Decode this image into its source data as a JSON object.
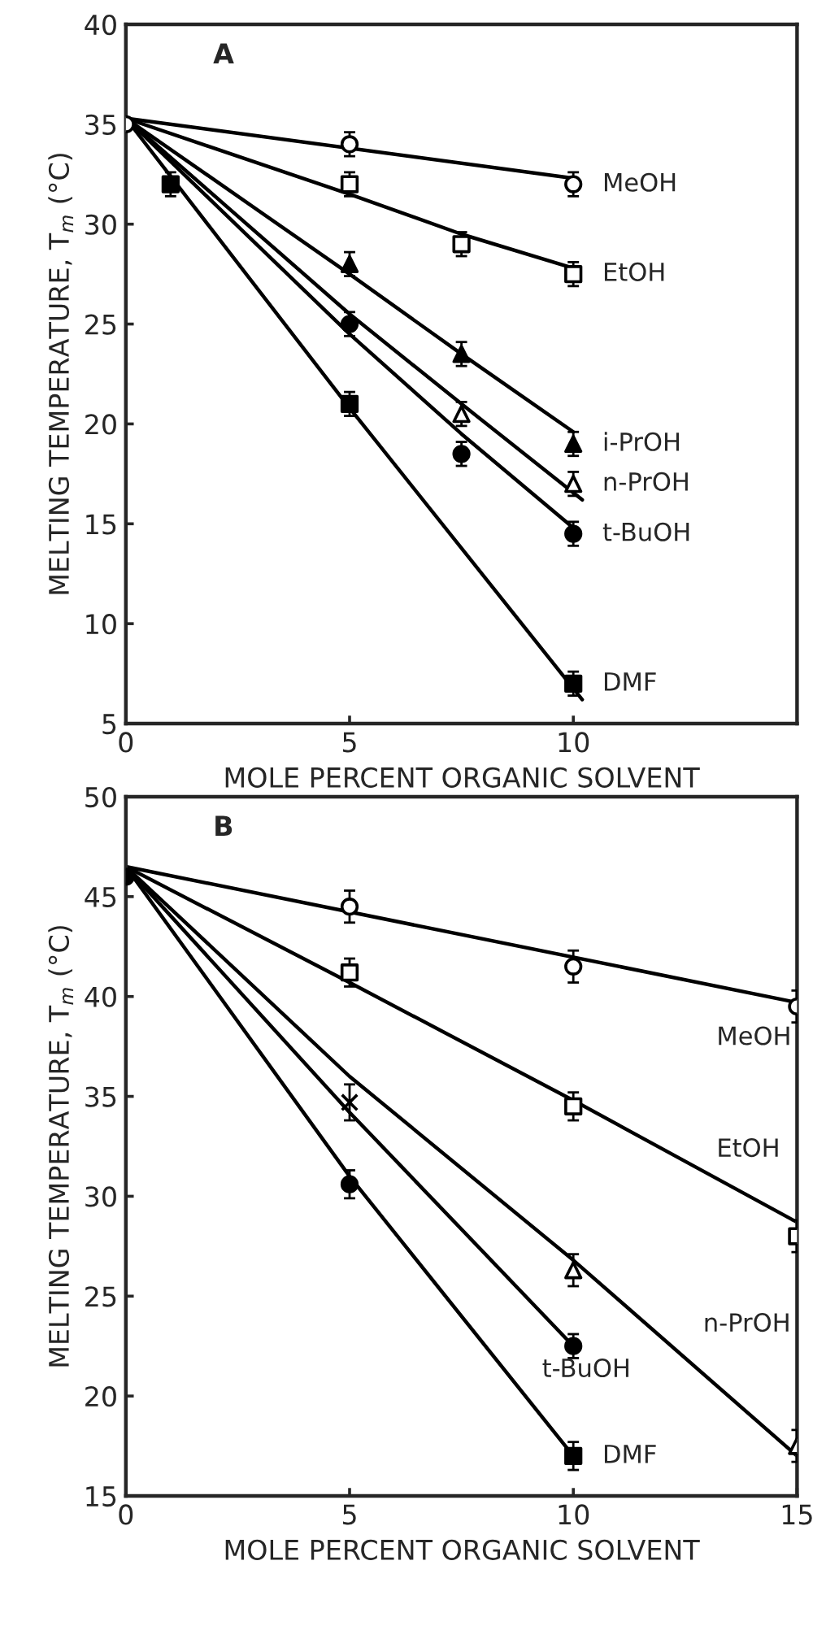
{
  "chart_data": [
    {
      "type": "scatter",
      "xlabel": "MOLE PERCENT ORGANIC SOLVENT",
      "ylabel": "MELTING TEMPERATURE, T$_{m}$ (°C)",
      "xlim": [
        0,
        15
      ],
      "xticks": [
        0,
        5,
        10
      ],
      "ylim": [
        5,
        40
      ],
      "yticks": [
        5,
        10,
        15,
        20,
        25,
        30,
        35,
        40
      ],
      "grid": false,
      "legend": false,
      "annotations": [
        "A",
        "MeOH",
        "EtOH",
        "i-PrOH",
        "n-PrOH",
        "t-BuOH",
        "DMF"
      ],
      "series": [
        {
          "type": "line",
          "color": "#000000",
          "marker": "none",
          "x": [
            0,
            10
          ],
          "values": [
            35.3,
            32.3
          ]
        },
        {
          "type": "line",
          "color": "#000000",
          "marker": "none",
          "x": [
            0,
            5,
            7.5,
            10
          ],
          "values": [
            35.3,
            31.5,
            29.5,
            27.8
          ]
        },
        {
          "type": "line",
          "color": "#000000",
          "marker": "none",
          "x": [
            0,
            5,
            7.5,
            10
          ],
          "values": [
            35.3,
            27.5,
            23.5,
            19.6
          ]
        },
        {
          "type": "line",
          "color": "#000000",
          "marker": "none",
          "x": [
            0,
            5,
            7.5,
            10.2
          ],
          "values": [
            35.3,
            25.5,
            21,
            16.2
          ]
        },
        {
          "type": "line",
          "color": "#000000",
          "marker": "none",
          "x": [
            0,
            5,
            7.5,
            10
          ],
          "values": [
            35.3,
            24.5,
            19.5,
            14.8
          ]
        },
        {
          "type": "line",
          "color": "#000000",
          "marker": "none",
          "x": [
            0,
            5,
            10.2
          ],
          "values": [
            35.3,
            20.8,
            6.2
          ]
        },
        {
          "type": "scatter",
          "color": "#ffffff",
          "marker": "circle",
          "x": [
            0,
            5,
            10
          ],
          "values": [
            35,
            34,
            32
          ],
          "errors": [
            null,
            0.6,
            0.6
          ]
        },
        {
          "type": "scatter",
          "color": "#ffffff",
          "marker": "square",
          "x": [
            5,
            7.5,
            10
          ],
          "values": [
            32,
            29,
            27.5
          ],
          "errors": [
            0.6,
            0.6,
            0.6
          ]
        },
        {
          "type": "scatter",
          "color": "#000000",
          "marker": "triangle",
          "x": [
            5,
            7.5,
            10
          ],
          "values": [
            28,
            23.5,
            19
          ],
          "errors": [
            0.6,
            0.6,
            0.6
          ]
        },
        {
          "type": "scatter",
          "color": "#ffffff",
          "marker": "triangle",
          "x": [
            7.5,
            10
          ],
          "values": [
            20.5,
            17
          ],
          "errors": [
            0.6,
            0.6
          ]
        },
        {
          "type": "scatter",
          "color": "#000000",
          "marker": "circle",
          "x": [
            5,
            7.5,
            10
          ],
          "values": [
            25,
            18.5,
            14.5
          ],
          "errors": [
            0.6,
            0.6,
            0.6
          ]
        },
        {
          "type": "scatter",
          "color": "#000000",
          "marker": "square",
          "x": [
            1,
            5,
            10
          ],
          "values": [
            32,
            21,
            7
          ],
          "errors": [
            0.6,
            0.6,
            0.6
          ]
        }
      ]
    },
    {
      "type": "scatter",
      "xlabel": "MOLE PERCENT ORGANIC SOLVENT",
      "ylabel": "MELTING TEMPERATURE, T$_{m}$ (°C)",
      "xlim": [
        0,
        15
      ],
      "xticks": [
        0,
        5,
        10,
        15
      ],
      "ylim": [
        15,
        50
      ],
      "yticks": [
        15,
        20,
        25,
        30,
        35,
        40,
        45,
        50
      ],
      "grid": false,
      "legend": false,
      "annotations": [
        "B",
        "MeOH",
        "EtOH",
        "n-PrOH",
        "t-BuOH",
        "DMF"
      ],
      "series": [
        {
          "type": "line",
          "color": "#000000",
          "marker": "none",
          "x": [
            0,
            15
          ],
          "values": [
            46.5,
            39.7
          ]
        },
        {
          "type": "line",
          "color": "#000000",
          "marker": "none",
          "x": [
            0,
            5,
            10,
            15
          ],
          "values": [
            46.5,
            40.7,
            34.8,
            28.7
          ]
        },
        {
          "type": "line",
          "color": "#000000",
          "marker": "none",
          "x": [
            0,
            5,
            10,
            15
          ],
          "values": [
            46.5,
            36,
            26.8,
            17
          ]
        },
        {
          "type": "line",
          "color": "#000000",
          "marker": "none",
          "x": [
            0,
            5,
            10
          ],
          "values": [
            46.5,
            34.2,
            22.5
          ]
        },
        {
          "type": "line",
          "color": "#000000",
          "marker": "none",
          "x": [
            0,
            5,
            10
          ],
          "values": [
            46.5,
            31,
            17
          ]
        },
        {
          "type": "scatter",
          "color": "#000000",
          "marker": "circle",
          "x": [
            0
          ],
          "values": [
            46
          ],
          "errors": [
            null
          ]
        },
        {
          "type": "scatter",
          "color": "#ffffff",
          "marker": "circle",
          "x": [
            5,
            10,
            15
          ],
          "values": [
            44.5,
            41.5,
            39.5
          ],
          "errors": [
            0.8,
            0.8,
            0.8
          ]
        },
        {
          "type": "scatter",
          "color": "#ffffff",
          "marker": "square",
          "x": [
            5,
            10,
            15
          ],
          "values": [
            41.2,
            34.5,
            28
          ],
          "errors": [
            0.7,
            0.7,
            0.8
          ]
        },
        {
          "type": "scatter",
          "color": "#ffffff",
          "marker": "triangle",
          "x": [
            10,
            15
          ],
          "values": [
            26.3,
            17.5
          ],
          "errors": [
            0.8,
            0.8
          ]
        },
        {
          "type": "scatter",
          "color": "#000000",
          "marker": "cross",
          "x": [
            5
          ],
          "values": [
            34.7
          ],
          "errors": [
            0.9
          ]
        },
        {
          "type": "scatter",
          "color": "#000000",
          "marker": "circle",
          "x": [
            5,
            10
          ],
          "values": [
            30.6,
            22.5
          ],
          "errors": [
            0.7,
            0.6
          ]
        },
        {
          "type": "scatter",
          "color": "#000000",
          "marker": "square",
          "x": [
            10
          ],
          "values": [
            17
          ],
          "errors": [
            0.7
          ]
        }
      ]
    }
  ]
}
